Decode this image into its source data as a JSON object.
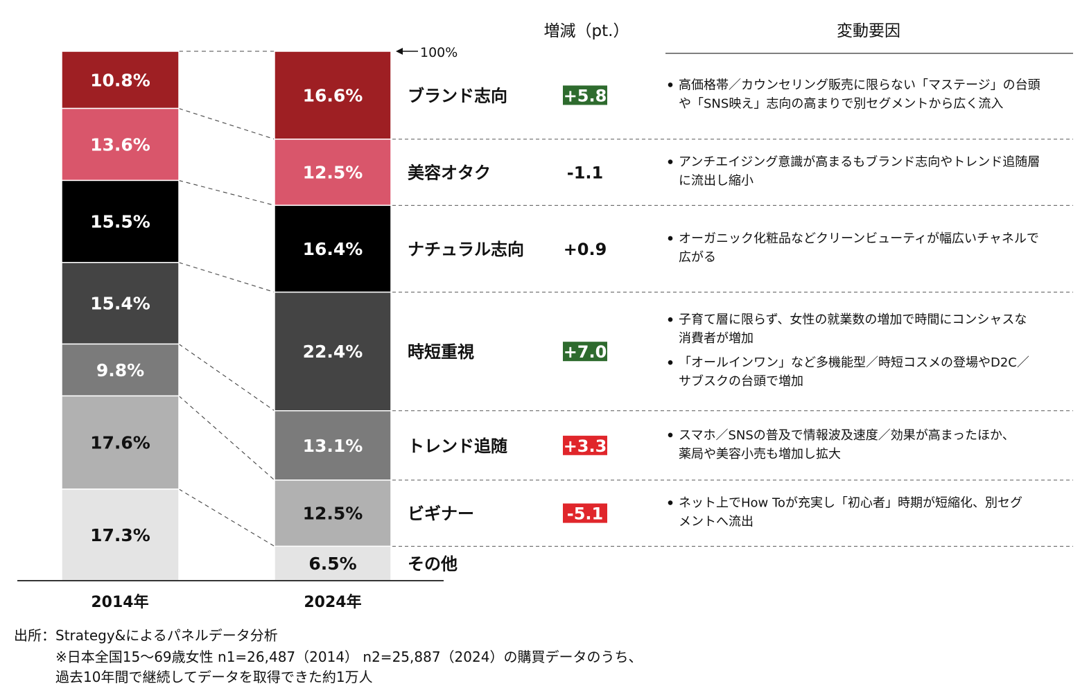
{
  "chart_data": {
    "type": "bar",
    "stacked": true,
    "categories": [
      "2014年",
      "2024年"
    ],
    "series": [
      {
        "name": "ブランド志向",
        "values": [
          10.8,
          16.6
        ],
        "labels": [
          "10.8%",
          "16.6%"
        ],
        "color": "#9e1f23",
        "text_color": "#ffffff"
      },
      {
        "name": "美容オタク",
        "values": [
          13.6,
          12.5
        ],
        "labels": [
          "13.6%",
          "12.5%"
        ],
        "color": "#d9566b",
        "text_color": "#ffffff"
      },
      {
        "name": "ナチュラル志向",
        "values": [
          15.5,
          16.4
        ],
        "labels": [
          "15.5%",
          "16.4%"
        ],
        "color": "#000000",
        "text_color": "#ffffff"
      },
      {
        "name": "時短重視",
        "values": [
          15.4,
          22.4
        ],
        "labels": [
          "15.4%",
          "22.4%"
        ],
        "color": "#444444",
        "text_color": "#ffffff"
      },
      {
        "name": "トレンド追随",
        "values": [
          9.8,
          13.1
        ],
        "labels": [
          "9.8%",
          "13.1%"
        ],
        "color": "#7b7b7b",
        "text_color": "#ffffff"
      },
      {
        "name": "ビギナー",
        "values": [
          17.6,
          12.5
        ],
        "labels": [
          "17.6%",
          "12.5%"
        ],
        "color": "#b1b1b1",
        "text_color": "#111111"
      },
      {
        "name": "その他",
        "values": [
          17.3,
          6.5
        ],
        "labels": [
          "17.3%",
          "6.5%"
        ],
        "color": "#e4e4e4",
        "text_color": "#111111"
      }
    ],
    "ylim": [
      0,
      100
    ],
    "top_marker": "100%",
    "headers": {
      "change": "増減（pt.）",
      "reasons": "変動要因"
    },
    "changes": [
      {
        "text": "+5.8",
        "style": "green"
      },
      {
        "text": "-1.1",
        "style": "plain"
      },
      {
        "text": "+0.9",
        "style": "plain"
      },
      {
        "text": "+7.0",
        "style": "green"
      },
      {
        "text": "+3.3",
        "style": "red"
      },
      {
        "text": "-5.1",
        "style": "red"
      },
      {
        "text": "",
        "style": "plain"
      }
    ],
    "change_colors": {
      "green": "#2e6b2e",
      "red": "#e0262b"
    },
    "reasons": [
      [
        [
          "高価格帯／カウンセリング販売に限らない「マステージ」の台頭",
          "や「SNS映え」志向の高まりで別セグメントから広く流入"
        ]
      ],
      [
        [
          "アンチエイジング意識が高まるもブランド志向やトレンド追随層",
          "に流出し縮小"
        ]
      ],
      [
        [
          "オーガニック化粧品などクリーンビューティが幅広いチャネルで",
          "広がる"
        ]
      ],
      [
        [
          "子育て層に限らず、女性の就業数の増加で時間にコンシャスな",
          "消費者が増加"
        ],
        [
          "「オールインワン」など多機能型／時短コスメの登場やD2C／",
          "サブスクの台頭で増加"
        ]
      ],
      [
        [
          "スマホ／SNSの普及で情報波及速度／効果が高まったほか、",
          "薬局や美容小売も増加し拡大"
        ]
      ],
      [
        [
          "ネット上でHow Toが充実し「初心者」時期が短縮化、別セグ",
          "メントへ流出"
        ]
      ],
      []
    ]
  },
  "footer": {
    "source": "出所：Strategy&によるパネルデータ分析",
    "note1": "※日本全国15～69歳女性 n1=26,487（2014） n2=25,887（2024）の購買データのうち、",
    "note2": "過去10年間で継続してデータを取得できた約1万人"
  }
}
